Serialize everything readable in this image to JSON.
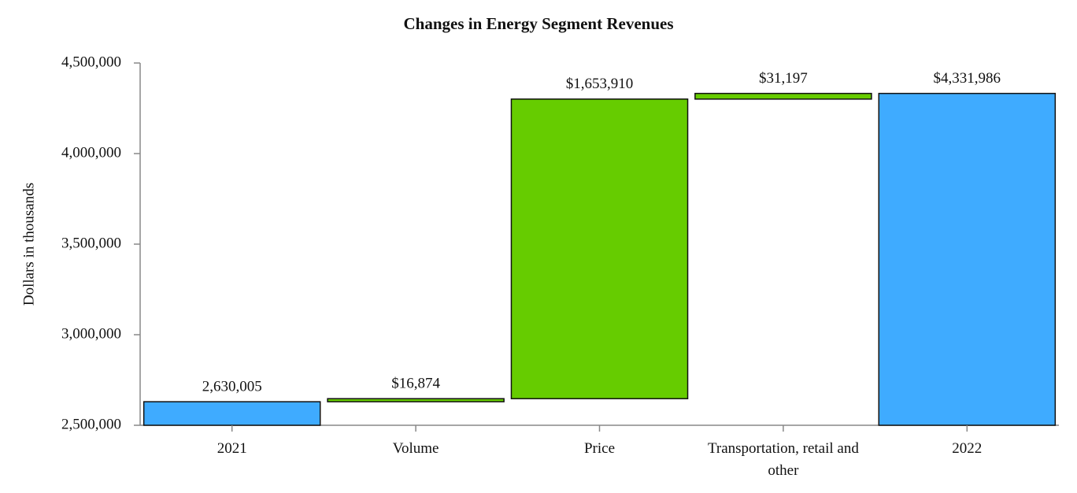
{
  "chart_data": {
    "type": "waterfall",
    "title": "Changes in Energy Segment Revenues",
    "y_label": "Dollars in thousands",
    "categories": [
      "2021",
      "Volume",
      "Price",
      "Transportation, retail and other",
      "2022"
    ],
    "measure": [
      "absolute",
      "relative",
      "relative",
      "relative",
      "absolute"
    ],
    "values": [
      2630005,
      16874,
      1653910,
      31197,
      4331986
    ],
    "value_labels": [
      "2,630,005",
      "$16,874",
      "$1,653,910",
      "$31,197",
      "$4,331,986"
    ],
    "colors": [
      "#3fabff",
      "#66cc00",
      "#66cc00",
      "#66cc00",
      "#3fabff"
    ],
    "ylim": [
      2500000,
      4500000
    ],
    "yticks": [
      {
        "value": 2500000,
        "label": "2,500,000"
      },
      {
        "value": 3000000,
        "label": "3,000,000"
      },
      {
        "value": 3500000,
        "label": "3,500,000"
      },
      {
        "value": 4000000,
        "label": "4,000,000"
      },
      {
        "value": 4500000,
        "label": "4,500,000"
      }
    ],
    "grid": false
  }
}
